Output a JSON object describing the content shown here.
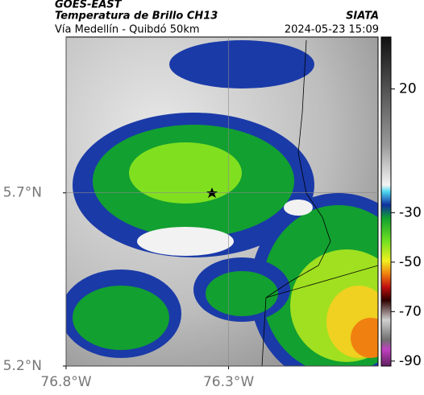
{
  "header": {
    "product": "GOES-EAST",
    "title": "Temperatura de Brillo CH13",
    "subtitle": "Vía Medellín - Quibdó 50km",
    "source": "SIATA",
    "timestamp": "2024-05-23 15:09"
  },
  "map": {
    "xlim": [
      -76.8,
      -75.84
    ],
    "ylim": [
      5.2,
      6.15
    ],
    "xticks": [
      {
        "value": -76.8,
        "label": "76.8°W"
      },
      {
        "value": -76.3,
        "label": "76.3°W"
      }
    ],
    "yticks": [
      {
        "value": 5.2,
        "label": "5.2°N"
      },
      {
        "value": 5.7,
        "label": "5.7°N"
      }
    ]
  },
  "colorbar": {
    "clim": [
      -92,
      41
    ],
    "ticks": [
      20,
      -30,
      -50,
      -70,
      -90
    ]
  }
}
